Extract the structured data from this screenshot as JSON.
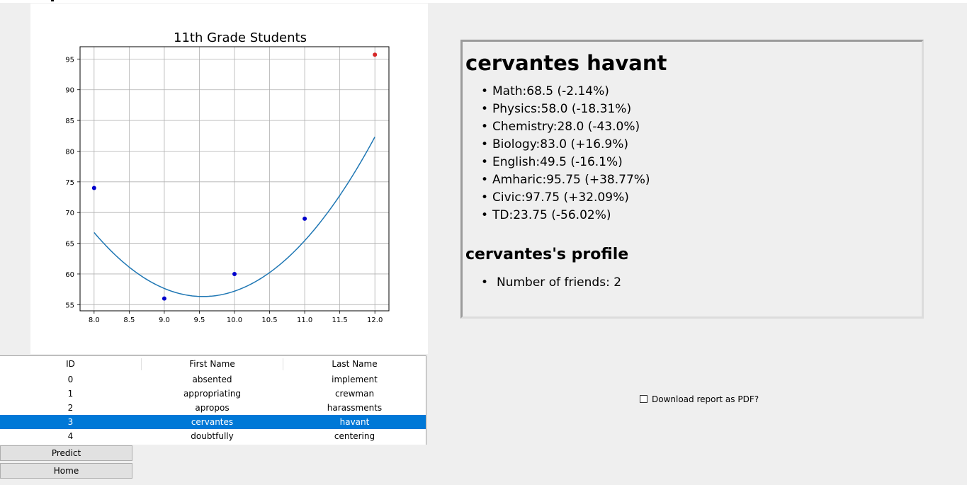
{
  "chart_data": {
    "type": "scatter",
    "title": "11th Grade Students",
    "xlabel": "",
    "ylabel": "",
    "xlim": [
      7.8,
      12.2
    ],
    "ylim": [
      54,
      97
    ],
    "xticks": [
      "8.0",
      "8.5",
      "9.0",
      "9.5",
      "10.0",
      "10.5",
      "11.0",
      "11.5",
      "12.0"
    ],
    "yticks": [
      "55",
      "60",
      "65",
      "70",
      "75",
      "80",
      "85",
      "90",
      "95"
    ],
    "grid": true,
    "series": [
      {
        "kind": "points",
        "color": "#0000cc",
        "x": [
          8,
          9,
          10,
          11
        ],
        "y": [
          74,
          56,
          60,
          69
        ]
      },
      {
        "kind": "predicted",
        "color": "#d62728",
        "x": [
          12
        ],
        "y": [
          95.7
        ]
      },
      {
        "kind": "fit",
        "color": "#1f77b4",
        "coefficients": [
          4.333,
          -82.77,
          451.6
        ]
      }
    ]
  },
  "table": {
    "headers": [
      "ID",
      "First Name",
      "Last Name"
    ],
    "selected_index": 3,
    "rows": [
      [
        "0",
        "absented",
        "implement"
      ],
      [
        "1",
        "appropriating",
        "crewman"
      ],
      [
        "2",
        "apropos",
        "harassments"
      ],
      [
        "3",
        "cervantes",
        "havant"
      ],
      [
        "4",
        "doubtfully",
        "centering"
      ]
    ]
  },
  "buttons": {
    "predict": "Predict",
    "home": "Home"
  },
  "report": {
    "name": "cervantes havant",
    "bullet": "•",
    "subjects": [
      "Math:68.5 (-2.14%)",
      "Physics:58.0 (-18.31%)",
      "Chemistry:28.0 (-43.0%)",
      "Biology:83.0 (+16.9%)",
      "English:49.5 (-16.1%)",
      "Amharic:95.75 (+38.77%)",
      "Civic:97.75 (+32.09%)",
      "TD:23.75 (-56.02%)"
    ],
    "profile_title": "cervantes's profile",
    "profile_items": [
      "Number of friends: 2"
    ]
  },
  "download_label": "Download report as PDF?"
}
